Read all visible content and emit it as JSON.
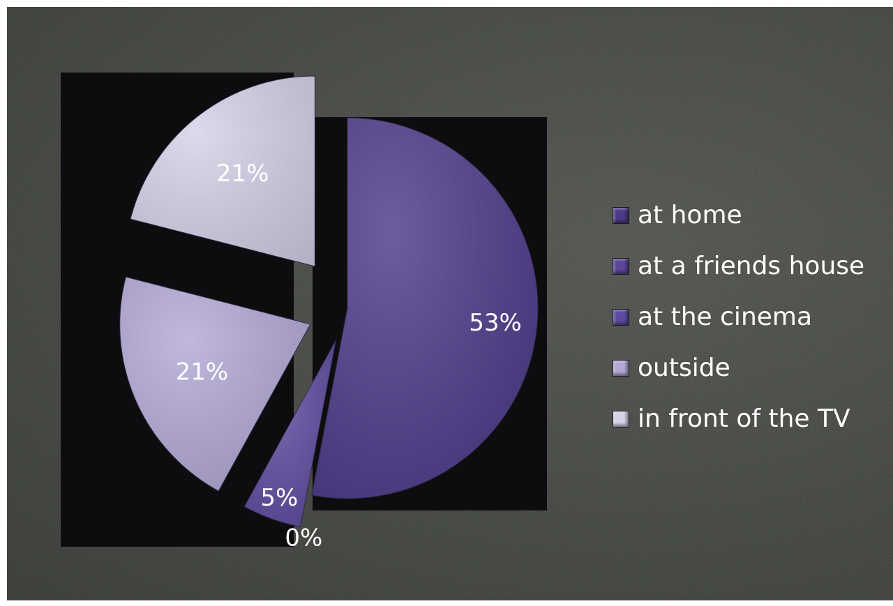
{
  "chart_data": {
    "type": "pie",
    "categories": [
      "at home",
      "at a friends house",
      "at the cinema",
      "outside",
      "in front of the TV"
    ],
    "values": [
      53,
      0,
      5,
      21,
      21
    ],
    "labels": [
      "53%",
      "0%",
      "5%",
      "21%",
      "21%"
    ],
    "colors": [
      "#4d3a8a",
      "#5a4599",
      "#5e4aa0",
      "#b3a8d6",
      "#d6d1e8"
    ],
    "legend_position": "right",
    "exploded": true
  },
  "legend": {
    "items": [
      {
        "label": "at home",
        "color": "#4d3a8a"
      },
      {
        "label": "at a friends house",
        "color": "#5a4599"
      },
      {
        "label": "at the cinema",
        "color": "#5e4aa0"
      },
      {
        "label": "outside",
        "color": "#b3a8d6"
      },
      {
        "label": "in front of the TV",
        "color": "#d6d1e8"
      }
    ]
  }
}
